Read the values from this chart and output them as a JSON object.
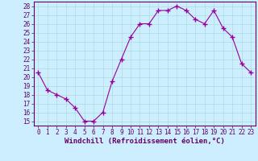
{
  "x": [
    0,
    1,
    2,
    3,
    4,
    5,
    6,
    7,
    8,
    9,
    10,
    11,
    12,
    13,
    14,
    15,
    16,
    17,
    18,
    19,
    20,
    21,
    22,
    23
  ],
  "y": [
    20.5,
    18.5,
    18.0,
    17.5,
    16.5,
    15.0,
    15.0,
    16.0,
    19.5,
    22.0,
    24.5,
    26.0,
    26.0,
    27.5,
    27.5,
    28.0,
    27.5,
    26.5,
    26.0,
    27.5,
    25.5,
    24.5,
    21.5,
    20.5
  ],
  "line_color": "#990099",
  "marker": "+",
  "marker_size": 4,
  "marker_linewidth": 1.0,
  "bg_color": "#cceeff",
  "grid_color": "#aadddd",
  "xlabel": "Windchill (Refroidissement éolien,°C)",
  "xlim": [
    -0.5,
    23.5
  ],
  "ylim": [
    14.5,
    28.5
  ],
  "yticks": [
    15,
    16,
    17,
    18,
    19,
    20,
    21,
    22,
    23,
    24,
    25,
    26,
    27,
    28
  ],
  "xticks": [
    0,
    1,
    2,
    3,
    4,
    5,
    6,
    7,
    8,
    9,
    10,
    11,
    12,
    13,
    14,
    15,
    16,
    17,
    18,
    19,
    20,
    21,
    22,
    23
  ],
  "tick_label_fontsize": 5.5,
  "xlabel_fontsize": 6.5,
  "line_color_dark": "#660066",
  "spine_color": "#660066"
}
